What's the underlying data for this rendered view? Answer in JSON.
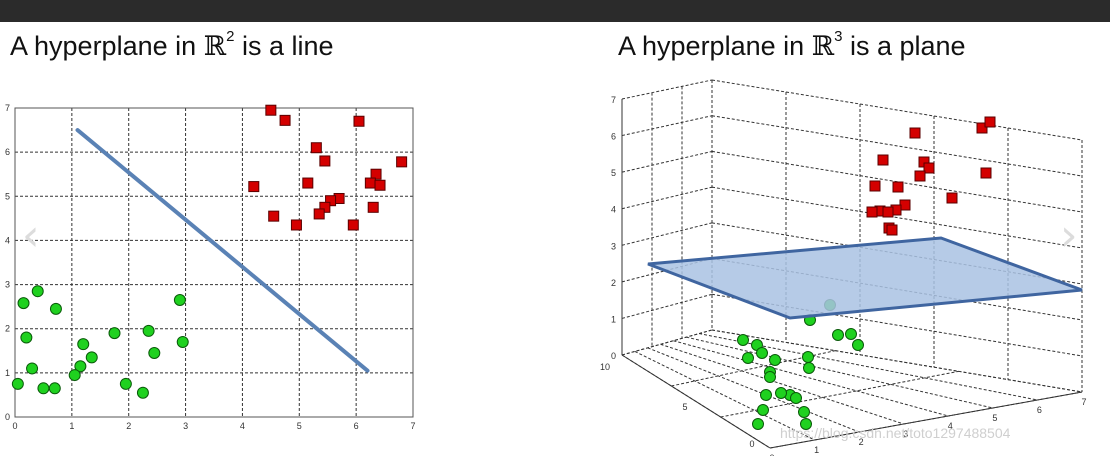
{
  "titles": {
    "left": {
      "prefix": "A hyperplane in ",
      "symbol": "ℝ",
      "exp": "2",
      "suffix": " is a line"
    },
    "right": {
      "prefix": "A hyperplane in ",
      "symbol": "ℝ",
      "exp": "3",
      "suffix": " is a plane"
    }
  },
  "watermark": "https://blog.csdn.net/toto1297488504",
  "colors": {
    "class_a": "#d40000",
    "class_b": "#1fd11f",
    "hyperplane": "#5a82b5",
    "plane_fill": "#a9c2e3"
  },
  "chart_data": [
    {
      "type": "scatter",
      "title": "A hyperplane in ℝ2 is a line",
      "xlim": [
        0,
        7
      ],
      "ylim": [
        0,
        7
      ],
      "xticks": [
        "0",
        "1",
        "2",
        "3",
        "4",
        "5",
        "6",
        "7"
      ],
      "yticks": [
        "0",
        "1",
        "2",
        "3",
        "4",
        "5",
        "6",
        "7"
      ],
      "grid": true,
      "line": {
        "x": [
          1.1,
          6.2
        ],
        "y": [
          6.5,
          1.05
        ]
      },
      "series": [
        {
          "marker": "square",
          "points": [
            [
              4.5,
              6.95
            ],
            [
              4.75,
              6.72
            ],
            [
              6.05,
              6.7
            ],
            [
              5.3,
              6.1
            ],
            [
              5.45,
              5.8
            ],
            [
              6.8,
              5.78
            ],
            [
              5.15,
              5.3
            ],
            [
              4.2,
              5.22
            ],
            [
              6.35,
              5.5
            ],
            [
              6.25,
              5.3
            ],
            [
              6.42,
              5.25
            ],
            [
              5.7,
              4.95
            ],
            [
              5.55,
              4.9
            ],
            [
              5.45,
              4.75
            ],
            [
              5.35,
              4.6
            ],
            [
              6.3,
              4.75
            ],
            [
              4.55,
              4.55
            ],
            [
              4.95,
              4.35
            ],
            [
              5.95,
              4.35
            ]
          ]
        },
        {
          "marker": "circle",
          "points": [
            [
              0.4,
              2.85
            ],
            [
              0.15,
              2.58
            ],
            [
              0.72,
              2.45
            ],
            [
              0.2,
              1.8
            ],
            [
              1.2,
              1.65
            ],
            [
              0.3,
              1.1
            ],
            [
              1.35,
              1.35
            ],
            [
              1.15,
              1.15
            ],
            [
              1.05,
              0.95
            ],
            [
              0.5,
              0.65
            ],
            [
              0.05,
              0.75
            ],
            [
              0.7,
              0.65
            ],
            [
              1.75,
              1.9
            ],
            [
              2.35,
              1.95
            ],
            [
              2.45,
              1.45
            ],
            [
              2.9,
              2.65
            ],
            [
              2.95,
              1.7
            ],
            [
              1.95,
              0.75
            ],
            [
              2.25,
              0.55
            ]
          ]
        }
      ]
    },
    {
      "type": "scatter",
      "title": "A hyperplane in ℝ3 is a plane",
      "zlim": [
        0,
        7
      ],
      "zticks": [
        "0",
        "1",
        "2",
        "3",
        "4",
        "5",
        "6",
        "7"
      ],
      "yticks": [
        "0",
        "5",
        "10"
      ],
      "xticks": [
        "0",
        "1",
        "2",
        "3",
        "4",
        "5",
        "6",
        "7"
      ],
      "grid": true,
      "plane": "flat hyperplane separating the two classes"
    }
  ]
}
